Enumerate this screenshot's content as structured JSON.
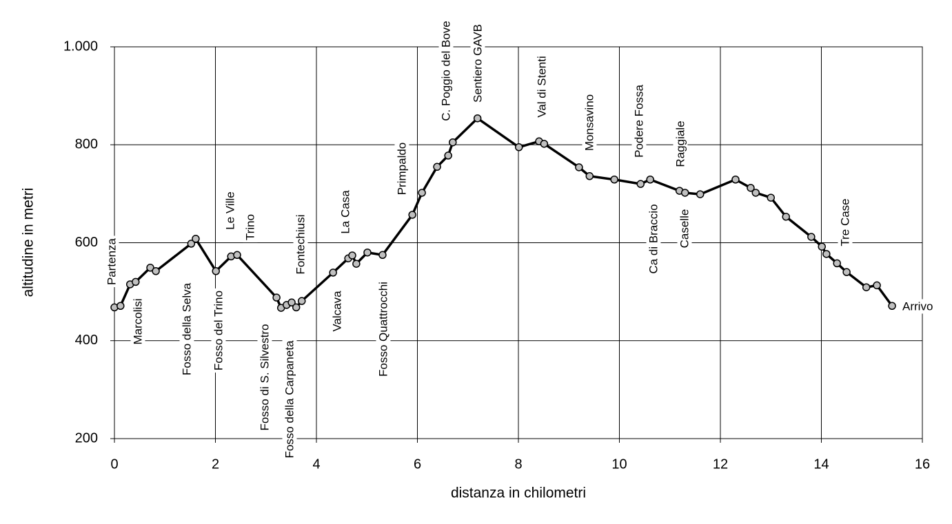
{
  "chart_data": {
    "type": "line",
    "x_label": "distanza in chilometri",
    "y_label": "altitudine  in metri",
    "x": [
      0,
      0.12,
      0.31,
      0.42,
      0.71,
      0.82,
      1.52,
      1.61,
      2.01,
      2.31,
      2.43,
      3.21,
      3.3,
      3.41,
      3.51,
      3.6,
      3.71,
      4.33,
      4.63,
      4.71,
      4.79,
      5.01,
      5.31,
      5.9,
      6.09,
      6.39,
      6.61,
      6.7,
      7.19,
      8.01,
      8.41,
      8.51,
      9.2,
      9.41,
      9.9,
      10.42,
      10.61,
      11.19,
      11.3,
      11.6,
      12.3,
      12.6,
      12.7,
      13.0,
      13.3,
      13.8,
      14.01,
      14.1,
      14.31,
      14.5,
      14.89,
      15.1,
      15.4
    ],
    "series": [
      {
        "name": "altitudine",
        "color": "#000000",
        "marker_color": "#c0c0c0",
        "values": [
          468,
          471,
          515,
          520,
          549,
          542,
          598,
          608,
          542,
          572,
          575,
          488,
          467,
          473,
          478,
          468,
          481,
          539,
          568,
          574,
          557,
          580,
          575,
          657,
          702,
          755,
          778,
          805,
          854,
          795,
          807,
          802,
          754,
          736,
          729,
          720,
          729,
          706,
          702,
          699,
          729,
          712,
          702,
          692,
          653,
          612,
          592,
          577,
          558,
          540,
          509,
          513,
          471
        ]
      }
    ],
    "xlim": [
      0,
      16
    ],
    "xticks": [
      0,
      2,
      4,
      6,
      8,
      10,
      12,
      14,
      16
    ],
    "ylim": [
      200,
      1000
    ],
    "yticks": [
      200,
      400,
      600,
      800,
      {
        "value": 1000,
        "label": "1.000"
      }
    ],
    "grid": true,
    "annotations": [
      "Partenza",
      "Marcolisi",
      "Fosso della Selva",
      "Le Ville",
      "Trino",
      "Fosso del Trino",
      "Fosso di S. Silvestro",
      "Fosso della Carpaneta",
      "Fontechiusi",
      "La Casa",
      "Valcava",
      "Fosso Quattrocchi",
      "Primpaldo",
      "C. Poggio del Bove",
      "Sentiero GAVB",
      "Val di Stenti",
      "Monsavino",
      "Podere Fossa",
      "Raggiale",
      "Ca di Braccio",
      "Caselle",
      "Tre Case",
      "Arrivo"
    ]
  }
}
